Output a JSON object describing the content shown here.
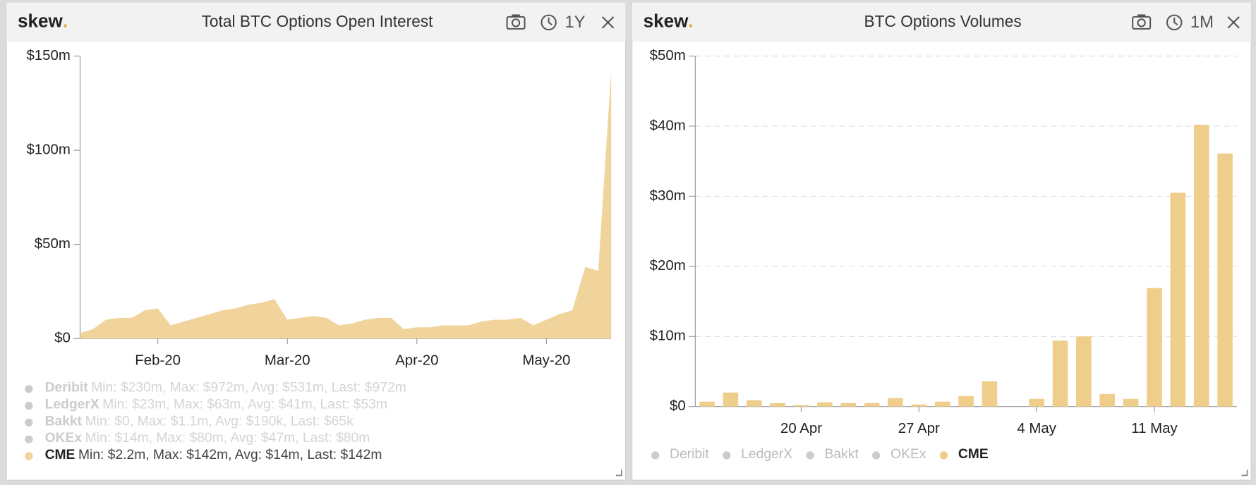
{
  "chart_data": [
    {
      "type": "area",
      "brand": "skew",
      "brand_mark": ".",
      "title": "Total BTC Options Open Interest",
      "range": "1Y",
      "categories": [
        null,
        null,
        null,
        null,
        null,
        null,
        "Feb-20",
        null,
        null,
        null,
        null,
        null,
        null,
        null,
        null,
        null,
        "Mar-20",
        null,
        null,
        null,
        null,
        null,
        null,
        null,
        null,
        null,
        "Apr-20",
        null,
        null,
        null,
        null,
        null,
        null,
        null,
        null,
        null,
        "May-20",
        null,
        null,
        null,
        null,
        null
      ],
      "ylim": [
        0,
        150
      ],
      "yticks": [
        {
          "value": 0,
          "label": "$0"
        },
        {
          "value": 50,
          "label": "$50m"
        },
        {
          "value": 100,
          "label": "$100m"
        },
        {
          "value": 150,
          "label": "$150m"
        }
      ],
      "grid": false,
      "series": [
        {
          "name": "Deribit",
          "stats": "Min: $230m, Max: $972m, Avg: $531m, Last: $972m",
          "visible": false
        },
        {
          "name": "LedgerX",
          "stats": "Min: $23m, Max: $63m, Avg: $41m, Last: $53m",
          "visible": false
        },
        {
          "name": "Bakkt",
          "stats": "Min: $0, Max: $1.1m, Avg: $190k, Last: $65k",
          "visible": false
        },
        {
          "name": "OKEx",
          "stats": "Min: $14m, Max: $80m, Avg: $47m, Last: $80m",
          "visible": false
        },
        {
          "name": "CME",
          "stats": "Min: $2.2m, Max: $142m, Avg: $14m, Last: $142m",
          "visible": true,
          "color": "#f0d49c",
          "values": [
            3,
            5,
            10,
            11,
            11,
            15,
            16,
            7,
            9,
            11,
            13,
            15,
            16,
            18,
            19,
            21,
            10,
            11,
            12,
            11,
            7,
            8,
            10,
            11,
            11,
            5,
            6,
            6,
            7,
            7,
            7,
            9,
            10,
            10,
            11,
            7,
            10,
            13,
            15,
            38,
            36,
            142
          ]
        }
      ]
    },
    {
      "type": "bar",
      "brand": "skew",
      "brand_mark": ".",
      "title": "BTC Options Volumes",
      "range": "1M",
      "categories": [
        null,
        null,
        null,
        null,
        "20 Apr",
        null,
        null,
        null,
        null,
        "27 Apr",
        null,
        null,
        null,
        null,
        "4 May",
        null,
        null,
        null,
        null,
        "11 May",
        null,
        null,
        null
      ],
      "ylim": [
        0,
        50
      ],
      "yticks": [
        {
          "value": 0,
          "label": "$0"
        },
        {
          "value": 10,
          "label": "$10m"
        },
        {
          "value": 20,
          "label": "$20m"
        },
        {
          "value": 30,
          "label": "$30m"
        },
        {
          "value": 40,
          "label": "$40m"
        },
        {
          "value": 50,
          "label": "$50m"
        }
      ],
      "grid": true,
      "series": [
        {
          "name": "Deribit",
          "visible": false
        },
        {
          "name": "LedgerX",
          "visible": false
        },
        {
          "name": "Bakkt",
          "visible": false
        },
        {
          "name": "OKEx",
          "visible": false
        },
        {
          "name": "CME",
          "visible": true,
          "color": "#efcd8b",
          "values": [
            0.7,
            2.0,
            0.9,
            0.5,
            0.2,
            0.6,
            0.5,
            0.5,
            1.2,
            0.3,
            0.7,
            1.5,
            3.6,
            0,
            1.1,
            9.4,
            10.0,
            1.8,
            1.1,
            16.9,
            30.5,
            40.2,
            36.1
          ]
        }
      ]
    }
  ]
}
